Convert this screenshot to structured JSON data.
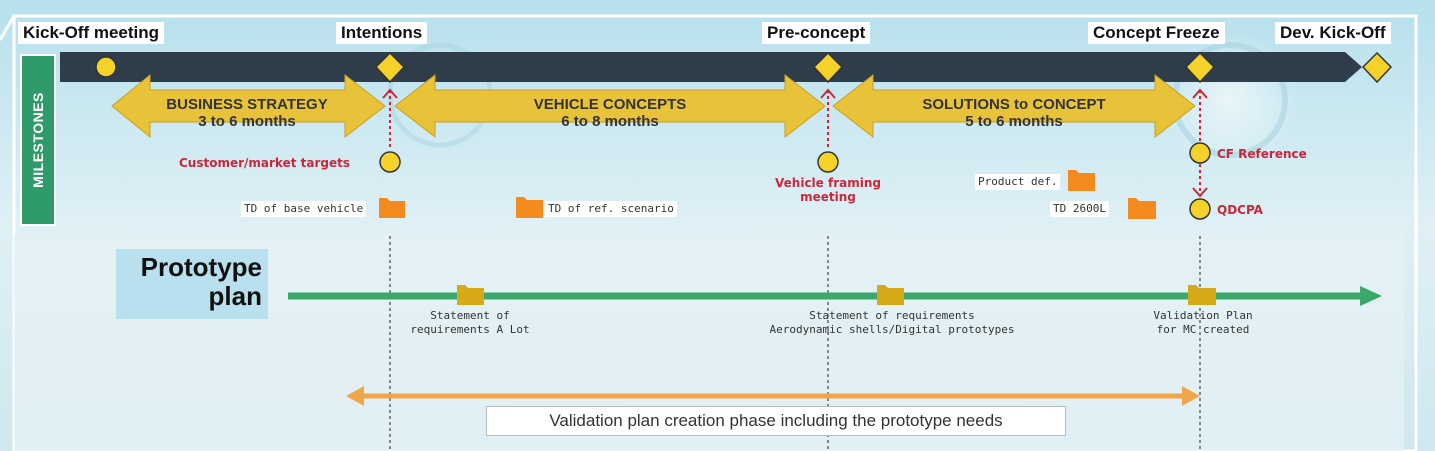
{
  "milestones": [
    {
      "label": "Kick-Off meeting"
    },
    {
      "label": "Intentions"
    },
    {
      "label": "Pre-concept"
    },
    {
      "label": "Concept Freeze"
    },
    {
      "label": "Dev. Kick-Off"
    }
  ],
  "side_label": "MILESTONES",
  "phases": [
    {
      "name": "BUSINESS STRATEGY",
      "duration": "3 to 6 months"
    },
    {
      "name": "VEHICLE CONCEPTS",
      "duration": "6 to 8 months"
    },
    {
      "name": "SOLUTIONS to CONCEPT",
      "duration": "5 to 6 months"
    }
  ],
  "events": {
    "customer_market_targets": "Customer/market targets",
    "vehicle_framing_line1": "Vehicle framing",
    "vehicle_framing_line2": "meeting",
    "cf_reference": "CF Reference",
    "qdcpa": "QDCPA"
  },
  "documents": {
    "td_base_vehicle": "TD of base vehicle",
    "td_ref_scenario": "TD of ref. scenario",
    "product_def": "Product def.",
    "td_2600l": "TD 2600L"
  },
  "prototype": {
    "title_line1": "Prototype",
    "title_line2": "plan",
    "items": [
      {
        "line1": "Statement of",
        "line2": "requirements A Lot"
      },
      {
        "line1": "Statement of requirements",
        "line2": "Aerodynamic shells/Digital prototypes"
      },
      {
        "line1": "Validation Plan",
        "line2": "for MC created"
      }
    ]
  },
  "validation_phase": "Validation plan creation phase including the prototype needs",
  "colors": {
    "milestone_bar": "#2f3d4a",
    "diamond": "#f4d22a",
    "phase_arrow": "#e8c33a",
    "side_label_bg": "#2f9a6a",
    "red_text": "#c8283a",
    "folder_orange": "#f28a1e",
    "folder_yellow": "#d6a918",
    "proto_line": "#3aa86b",
    "validation_arrow": "#f0a54a"
  }
}
